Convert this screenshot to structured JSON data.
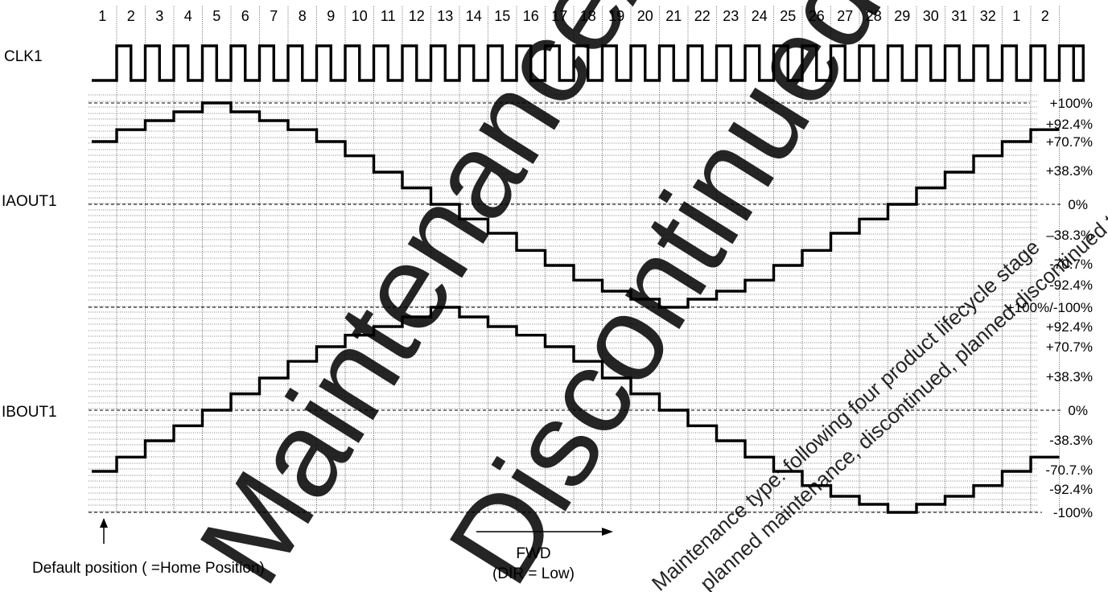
{
  "signals": {
    "clock": "CLK1",
    "phase_a": "IAOUT1",
    "phase_b": "IBOUT1"
  },
  "clock_step_labels": [
    "1",
    "2",
    "3",
    "4",
    "5",
    "6",
    "7",
    "8",
    "9",
    "10",
    "11",
    "12",
    "13",
    "14",
    "15",
    "16",
    "17",
    "18",
    "19",
    "20",
    "21",
    "22",
    "23",
    "24",
    "25",
    "26",
    "27",
    "28",
    "29",
    "30",
    "31",
    "32",
    "1",
    "2"
  ],
  "iaout_level_labels": [
    "+100%",
    "+92.4%",
    "+70.7%",
    "+38.3%",
    "0%",
    "–38.3%",
    "-70.7%",
    "-92.4%"
  ],
  "ibout_level_labels": [
    "+100%/-100%",
    "+92.4%",
    "+70.7%",
    "+38.3%",
    "0%",
    "-38.3%",
    "-70.7.%",
    "-92.4%",
    "-100%"
  ],
  "waveform_levels_percent": [
    -100,
    -92.4,
    -70.7,
    -38.3,
    0,
    38.3,
    70.7,
    92.4,
    100
  ],
  "iaout_current_percent": [
    70.7,
    83.1,
    92.4,
    96.2,
    100,
    96.2,
    92.4,
    83.1,
    70.7,
    55.6,
    38.3,
    19.5,
    0,
    -19.5,
    -38.3,
    -55.6,
    -70.7,
    -83.1,
    -92.4,
    -96.2,
    -100,
    -96.2,
    -92.4,
    -83.1,
    -70.7,
    -55.6,
    -38.3,
    -19.5,
    0,
    19.5,
    38.3,
    55.6,
    70.7,
    83.1
  ],
  "ibout_current_percent": [
    -70.7,
    -55.6,
    -38.3,
    -19.5,
    0,
    19.5,
    38.3,
    55.6,
    70.7,
    83.1,
    92.4,
    96.2,
    100,
    96.2,
    92.4,
    83.1,
    70.7,
    55.6,
    38.3,
    19.5,
    0,
    -19.5,
    -38.3,
    -55.6,
    -70.7,
    -83.1,
    -92.4,
    -96.2,
    -100,
    -96.2,
    -92.4,
    -83.1,
    -70.7,
    -55.6
  ],
  "annotations": {
    "default_position": "Default position ( =Home Position)",
    "direction_line1": "FWD",
    "direction_line2": "(DIR = Low)"
  },
  "watermark": {
    "large_line1": "Maintenance/",
    "large_line2": "Discontinued",
    "small_line1": "Maintenance type: following four product lifecycle stage",
    "small_line2": "planned maintenance, discontinued, planned discontinued type",
    "color": "#ef2b3a"
  }
}
